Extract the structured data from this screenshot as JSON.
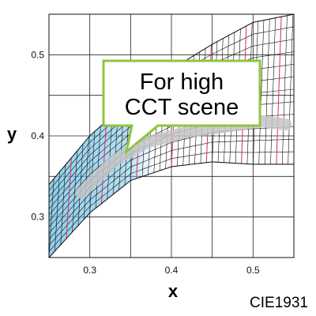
{
  "chart_data": {
    "type": "scatter",
    "color_space": "CIE1931",
    "xlabel": "x",
    "ylabel": "y",
    "xlim": [
      0.25,
      0.55
    ],
    "ylim": [
      0.25,
      0.55
    ],
    "x_ticks": [
      0.3,
      0.4,
      0.5
    ],
    "y_ticks": [
      0.3,
      0.4,
      0.5
    ],
    "x_tick_labels": [
      "0.3",
      "0.4",
      "0.5"
    ],
    "y_tick_labels": [
      "0.3",
      "0.4",
      "0.5"
    ],
    "grid": true,
    "annotation": {
      "lines": [
        "For high",
        "CCT scene"
      ],
      "border_color": "#8dc63f",
      "fill_color": "#ffffff"
    },
    "footer_label": "CIE1931",
    "mesh_color": "#111111",
    "isotherm_color": "#d0305a",
    "blue_region_color": "#7cc6e8",
    "locus_band_color": "#c4c4c4",
    "mesh_band": {
      "center": [
        [
          0.25,
          0.305
        ],
        [
          0.3,
          0.355
        ],
        [
          0.35,
          0.39
        ],
        [
          0.4,
          0.412
        ],
        [
          0.45,
          0.428
        ],
        [
          0.5,
          0.44
        ],
        [
          0.55,
          0.445
        ]
      ],
      "lower_offset": [
        -0.055,
        -0.05,
        -0.045,
        -0.05,
        -0.06,
        -0.075,
        -0.08
      ],
      "upper_offset": [
        0.035,
        0.045,
        0.055,
        0.07,
        0.085,
        0.1,
        0.105
      ]
    },
    "locus_band": {
      "points": [
        [
          0.29,
          0.33
        ],
        [
          0.33,
          0.37
        ],
        [
          0.37,
          0.392
        ],
        [
          0.42,
          0.405
        ],
        [
          0.47,
          0.412
        ],
        [
          0.51,
          0.418
        ],
        [
          0.54,
          0.414
        ]
      ]
    },
    "blue_region": {
      "x_range": [
        0.25,
        0.34
      ]
    }
  }
}
